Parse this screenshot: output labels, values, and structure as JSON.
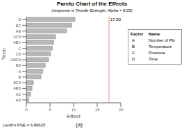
{
  "chart_data": {
    "type": "bar",
    "orientation": "horizontal",
    "title": "Pareto Chart of the Effects",
    "subtitle": "(response is Tensile Strength, Alpha = 0.05)",
    "xlabel": "Effect",
    "ylabel": "Term",
    "categories": [
      "D",
      "BC",
      "AB",
      "ACD",
      "ABC",
      "C",
      "CD",
      "ABCD",
      "BD",
      "A",
      "B",
      "BCD",
      "ABD",
      "AC",
      "AD"
    ],
    "values": [
      10.3,
      9.6,
      8.5,
      6.2,
      5.8,
      5.5,
      5.1,
      4.7,
      4.0,
      3.5,
      3.1,
      1.5,
      1.2,
      0.9,
      0.5
    ],
    "color": "#b8b8b8",
    "xlim": [
      0,
      20
    ],
    "xticks": [
      0,
      5,
      10,
      15,
      20
    ],
    "grid": false,
    "annotations": [
      {
        "x": 17.5,
        "label": "17.50",
        "color": "#ff8888"
      }
    ],
    "note": "Lenth's PSE = 6.80625",
    "caption": "(a)",
    "table": {
      "header": [
        "Factor",
        "Name"
      ],
      "rows": [
        [
          "A",
          "Number of Ply"
        ],
        [
          "B",
          "Temperature"
        ],
        [
          "C",
          "Pressure"
        ],
        [
          "D",
          "Time"
        ]
      ]
    }
  }
}
